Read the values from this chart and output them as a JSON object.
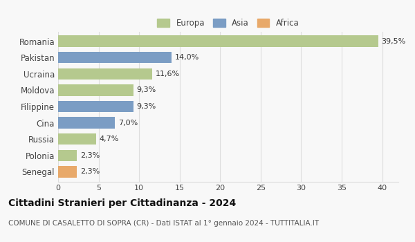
{
  "categories": [
    "Romania",
    "Pakistan",
    "Ucraina",
    "Moldova",
    "Filippine",
    "Cina",
    "Russia",
    "Polonia",
    "Senegal"
  ],
  "values": [
    39.5,
    14.0,
    11.6,
    9.3,
    9.3,
    7.0,
    4.7,
    2.3,
    2.3
  ],
  "labels": [
    "39,5%",
    "14,0%",
    "11,6%",
    "9,3%",
    "9,3%",
    "7,0%",
    "4,7%",
    "2,3%",
    "2,3%"
  ],
  "continents": [
    "Europa",
    "Asia",
    "Europa",
    "Europa",
    "Asia",
    "Asia",
    "Europa",
    "Europa",
    "Africa"
  ],
  "colors": {
    "Europa": "#b5c98e",
    "Asia": "#7b9dc4",
    "Africa": "#e8a96a"
  },
  "legend_order": [
    "Europa",
    "Asia",
    "Africa"
  ],
  "xlim": [
    0,
    42
  ],
  "xticks": [
    0,
    5,
    10,
    15,
    20,
    25,
    30,
    35,
    40
  ],
  "title": "Cittadini Stranieri per Cittadinanza - 2024",
  "subtitle": "COMUNE DI CASALETTO DI SOPRA (CR) - Dati ISTAT al 1° gennaio 2024 - TUTTITALIA.IT",
  "background_color": "#f8f8f8",
  "grid_color": "#dddddd",
  "bar_height": 0.7,
  "title_fontsize": 10,
  "subtitle_fontsize": 7.5,
  "tick_label_fontsize": 8.5,
  "axis_tick_fontsize": 8,
  "legend_fontsize": 8.5,
  "label_fontsize": 8
}
